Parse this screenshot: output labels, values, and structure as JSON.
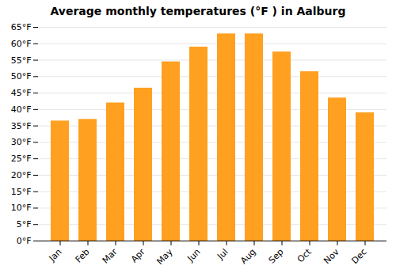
{
  "chart_data": {
    "type": "bar",
    "title": "Average monthly temperatures (°F ) in Aalburg",
    "categories": [
      "Jan",
      "Feb",
      "Mar",
      "Apr",
      "May",
      "Jun",
      "Jul",
      "Aug",
      "Sep",
      "Oct",
      "Nov",
      "Dec"
    ],
    "values": [
      36.5,
      37.0,
      42.0,
      46.5,
      54.5,
      59.0,
      63.0,
      63.0,
      57.5,
      51.5,
      43.5,
      39.0
    ],
    "color": "#FFA020",
    "ylim": [
      0,
      65
    ],
    "yticks": [
      {
        "value": 0,
        "label": "0°F"
      },
      {
        "value": 5,
        "label": "5°F"
      },
      {
        "value": 10,
        "label": "10°F"
      },
      {
        "value": 15,
        "label": "15°F"
      },
      {
        "value": 20,
        "label": "20°F"
      },
      {
        "value": 25,
        "label": "25°F"
      },
      {
        "value": 30,
        "label": "30°F"
      },
      {
        "value": 35,
        "label": "35°F"
      },
      {
        "value": 40,
        "label": "40°F"
      },
      {
        "value": 45,
        "label": "45°F"
      },
      {
        "value": 50,
        "label": "50°F"
      },
      {
        "value": 55,
        "label": "55°F"
      },
      {
        "value": 60,
        "label": "60°F"
      },
      {
        "value": 65,
        "label": "65°F"
      }
    ],
    "grid": true
  }
}
